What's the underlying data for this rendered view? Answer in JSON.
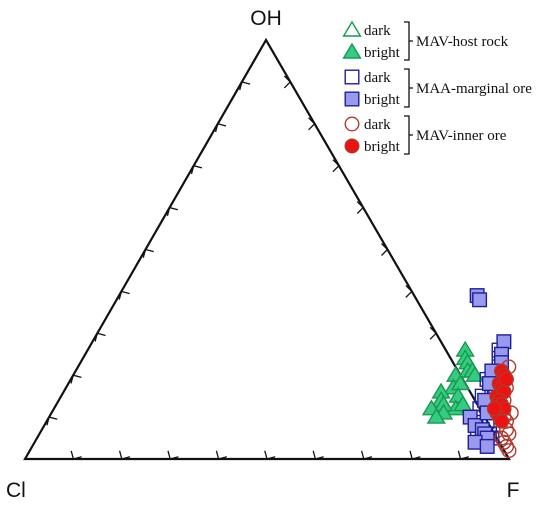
{
  "chart_data": {
    "type": "scatter",
    "subtype": "ternary",
    "vertices": {
      "top": "OH",
      "left": "Cl",
      "right": "F"
    },
    "ticks": 10,
    "groups": [
      {
        "name": "MAV-host rock",
        "marker": "triangle",
        "color": "#1a9850",
        "fill": "#33cc80",
        "series": [
          {
            "name": "dark",
            "filled": false,
            "points": []
          },
          {
            "name": "bright",
            "filled": true,
            "points": [
              {
                "F": 0.78,
                "OH": 0.26
              },
              {
                "F": 0.79,
                "OH": 0.24
              },
              {
                "F": 0.8,
                "OH": 0.23
              },
              {
                "F": 0.81,
                "OH": 0.21
              },
              {
                "F": 0.79,
                "OH": 0.2
              },
              {
                "F": 0.8,
                "OH": 0.17
              },
              {
                "F": 0.81,
                "OH": 0.18
              },
              {
                "F": 0.82,
                "OH": 0.21
              },
              {
                "F": 0.83,
                "OH": 0.2
              },
              {
                "F": 0.78,
                "OH": 0.16
              },
              {
                "F": 0.79,
                "OH": 0.14
              },
              {
                "F": 0.82,
                "OH": 0.15
              },
              {
                "F": 0.83,
                "OH": 0.12
              },
              {
                "F": 0.8,
                "OH": 0.13
              },
              {
                "F": 0.78,
                "OH": 0.12
              },
              {
                "F": 0.81,
                "OH": 0.11
              },
              {
                "F": 0.84,
                "OH": 0.13
              },
              {
                "F": 0.8,
                "OH": 0.1
              }
            ]
          }
        ]
      },
      {
        "name": "MAA-marginal ore",
        "marker": "square",
        "color": "#1f1f99",
        "fill": "#9999ee",
        "series": [
          {
            "name": "dark",
            "filled": false,
            "points": [
              {
                "F": 0.85,
                "OH": 0.26
              },
              {
                "F": 0.86,
                "OH": 0.24
              },
              {
                "F": 0.87,
                "OH": 0.22
              },
              {
                "F": 0.86,
                "OH": 0.19
              },
              {
                "F": 0.88,
                "OH": 0.17
              },
              {
                "F": 0.87,
                "OH": 0.15
              },
              {
                "F": 0.89,
                "OH": 0.16
              },
              {
                "F": 0.88,
                "OH": 0.12
              },
              {
                "F": 0.9,
                "OH": 0.13
              },
              {
                "F": 0.89,
                "OH": 0.1
              },
              {
                "F": 0.91,
                "OH": 0.09
              },
              {
                "F": 0.9,
                "OH": 0.07
              },
              {
                "F": 0.92,
                "OH": 0.05
              },
              {
                "F": 0.93,
                "OH": 0.06
              },
              {
                "F": 0.94,
                "OH": 0.05
              },
              {
                "F": 0.92,
                "OH": 0.08
              }
            ]
          },
          {
            "name": "bright",
            "filled": true,
            "points": [
              {
                "F": 0.74,
                "OH": 0.39
              },
              {
                "F": 0.75,
                "OH": 0.38
              },
              {
                "F": 0.85,
                "OH": 0.28
              },
              {
                "F": 0.86,
                "OH": 0.25
              },
              {
                "F": 0.87,
                "OH": 0.23
              },
              {
                "F": 0.86,
                "OH": 0.21
              },
              {
                "F": 0.87,
                "OH": 0.18
              },
              {
                "F": 0.88,
                "OH": 0.14
              },
              {
                "F": 0.87,
                "OH": 0.1
              },
              {
                "F": 0.89,
                "OH": 0.08
              },
              {
                "F": 0.9,
                "OH": 0.11
              },
              {
                "F": 0.91,
                "OH": 0.07
              },
              {
                "F": 0.92,
                "OH": 0.06
              },
              {
                "F": 0.93,
                "OH": 0.05
              },
              {
                "F": 0.91,
                "OH": 0.04
              },
              {
                "F": 0.94,
                "OH": 0.03
              }
            ]
          }
        ]
      },
      {
        "name": "MAV-inner ore",
        "marker": "circle",
        "color": "#b03a2e",
        "fill": "#ee1111",
        "series": [
          {
            "name": "dark",
            "filled": false,
            "points": [
              {
                "F": 0.89,
                "OH": 0.22
              },
              {
                "F": 0.9,
                "OH": 0.19
              },
              {
                "F": 0.91,
                "OH": 0.17
              },
              {
                "F": 0.92,
                "OH": 0.14
              },
              {
                "F": 0.93,
                "OH": 0.12
              },
              {
                "F": 0.94,
                "OH": 0.1
              },
              {
                "F": 0.95,
                "OH": 0.09
              },
              {
                "F": 0.96,
                "OH": 0.07
              },
              {
                "F": 0.96,
                "OH": 0.05
              },
              {
                "F": 0.97,
                "OH": 0.04
              },
              {
                "F": 0.98,
                "OH": 0.03
              },
              {
                "F": 0.99,
                "OH": 0.02
              },
              {
                "F": 0.97,
                "OH": 0.06
              },
              {
                "F": 0.95,
                "OH": 0.11
              }
            ]
          },
          {
            "name": "bright",
            "filled": true,
            "points": [
              {
                "F": 0.88,
                "OH": 0.21
              },
              {
                "F": 0.89,
                "OH": 0.2
              },
              {
                "F": 0.89,
                "OH": 0.18
              },
              {
                "F": 0.9,
                "OH": 0.17
              },
              {
                "F": 0.9,
                "OH": 0.15
              },
              {
                "F": 0.91,
                "OH": 0.16
              },
              {
                "F": 0.91,
                "OH": 0.14
              },
              {
                "F": 0.92,
                "OH": 0.13
              },
              {
                "F": 0.92,
                "OH": 0.11
              },
              {
                "F": 0.93,
                "OH": 0.12
              },
              {
                "F": 0.93,
                "OH": 0.1
              },
              {
                "F": 0.94,
                "OH": 0.09
              },
              {
                "F": 0.9,
                "OH": 0.19
              },
              {
                "F": 0.91,
                "OH": 0.12
              }
            ]
          }
        ]
      }
    ]
  }
}
